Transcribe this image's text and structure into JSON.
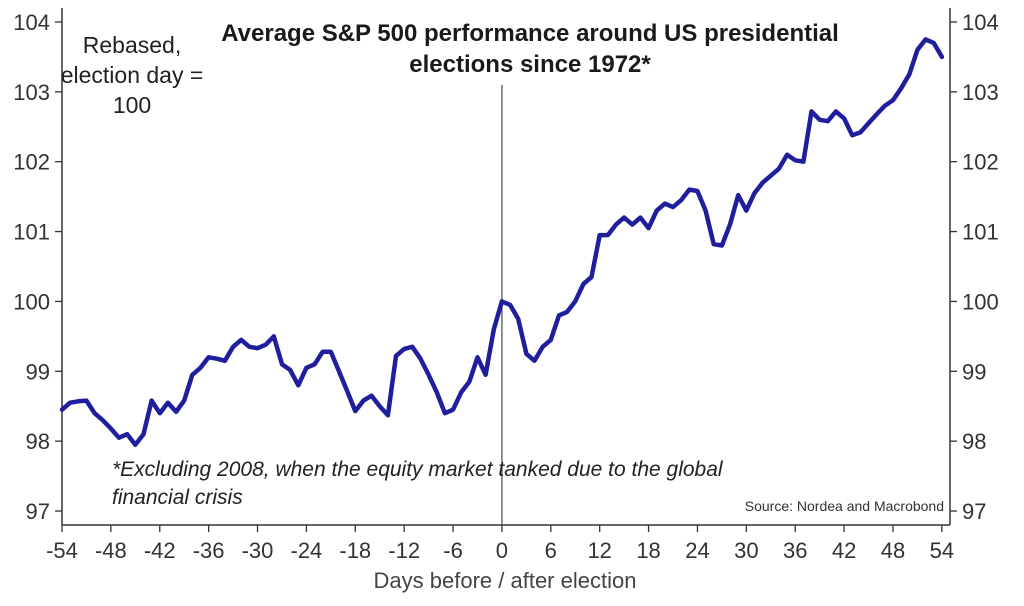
{
  "chart_data": {
    "type": "line",
    "title": "Average S&P 500 performance around US presidential elections since 1972*",
    "ylabel": "Rebased, election day = 100",
    "xlabel": "Days before / after election",
    "footnote": "*Excluding 2008, when the equity market tanked due to the global financial crisis",
    "source": "Source: Nordea and Macrobond",
    "xlim": [
      -54,
      55
    ],
    "ylim": [
      96.8,
      104.2
    ],
    "x_ticks": [
      -54,
      -48,
      -42,
      -36,
      -30,
      -24,
      -18,
      -12,
      -6,
      0,
      6,
      12,
      18,
      24,
      30,
      36,
      42,
      48,
      54
    ],
    "y_ticks": [
      97,
      98,
      99,
      100,
      101,
      102,
      103,
      104
    ],
    "grid": false,
    "reference_line_x": 0,
    "line_color": "#1f1f9e",
    "series": [
      {
        "x": [
          -54,
          -53,
          -52,
          -51,
          -50,
          -49,
          -48,
          -47,
          -46,
          -45,
          -44,
          -43,
          -42,
          -41,
          -40,
          -39,
          -38,
          -37,
          -36,
          -35,
          -34,
          -33,
          -32,
          -31,
          -30,
          -29,
          -28,
          -27,
          -26,
          -25,
          -24,
          -23,
          -22,
          -21,
          -20,
          -19,
          -18,
          -17,
          -16,
          -15,
          -14,
          -13,
          -12,
          -11,
          -10,
          -9,
          -8,
          -7,
          -6,
          -5,
          -4,
          -3,
          -2,
          -1,
          0,
          1,
          2,
          3,
          4,
          5,
          6,
          7,
          8,
          9,
          10,
          11,
          12,
          13,
          14,
          15,
          16,
          17,
          18,
          19,
          20,
          21,
          22,
          23,
          24,
          25,
          26,
          27,
          28,
          29,
          30,
          31,
          32,
          33,
          34,
          35,
          36,
          37,
          38,
          39,
          40,
          41,
          42,
          43,
          44,
          45,
          46,
          47,
          48,
          49,
          50,
          51,
          52,
          53,
          54
        ],
        "values": [
          98.45,
          98.55,
          98.57,
          98.58,
          98.4,
          98.3,
          98.18,
          98.05,
          98.1,
          97.95,
          98.1,
          98.58,
          98.4,
          98.55,
          98.42,
          98.58,
          98.95,
          99.05,
          99.2,
          99.18,
          99.15,
          99.35,
          99.45,
          99.35,
          99.33,
          99.38,
          99.5,
          99.1,
          99.02,
          98.8,
          99.05,
          99.1,
          99.28,
          99.28,
          99.0,
          98.72,
          98.43,
          98.58,
          98.65,
          98.5,
          98.37,
          99.22,
          99.32,
          99.35,
          99.18,
          98.95,
          98.7,
          98.4,
          98.45,
          98.7,
          98.85,
          99.2,
          98.95,
          99.6,
          100.0,
          99.95,
          99.75,
          99.25,
          99.15,
          99.35,
          99.45,
          99.8,
          99.85,
          100.0,
          100.25,
          100.35,
          100.95,
          100.95,
          101.1,
          101.2,
          101.1,
          101.2,
          101.05,
          101.3,
          101.4,
          101.35,
          101.45,
          101.6,
          101.58,
          101.3,
          100.82,
          100.8,
          101.1,
          101.52,
          101.3,
          101.55,
          101.7,
          101.8,
          101.9,
          102.1,
          102.02,
          102.0,
          102.72,
          102.6,
          102.58,
          102.72,
          102.62,
          102.38,
          102.42,
          102.55,
          102.68,
          102.8,
          102.88,
          103.05,
          103.25,
          103.6,
          103.75,
          103.7,
          103.5
        ]
      }
    ]
  }
}
